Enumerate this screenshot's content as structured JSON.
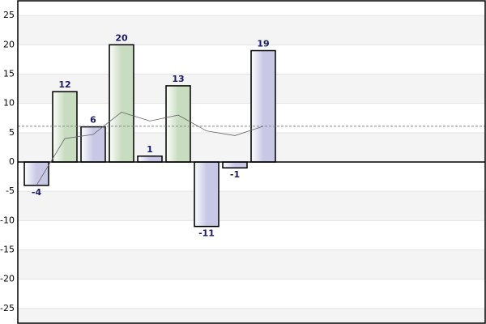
{
  "chart_data": {
    "type": "bar",
    "values": [
      -4,
      12,
      6,
      20,
      1,
      13,
      -11,
      -1,
      19
    ],
    "colors": [
      "#c8c8e6",
      "#c8dcc0",
      "#c8c8e6",
      "#c8dcc0",
      "#c8c8e6",
      "#c8dcc0",
      "#c8c8e6",
      "#c8c8e6",
      "#c8c8e6"
    ],
    "line": {
      "values": [
        -4,
        4,
        4.7,
        8.5,
        7,
        8,
        5.3,
        4.5,
        6.1
      ],
      "color": "#666666"
    },
    "average_line": 6.1,
    "ylim": [
      -27.5,
      27.5
    ],
    "yticks": [
      -25,
      -20,
      -15,
      -10,
      -5,
      0,
      5,
      10,
      15,
      20,
      25
    ],
    "grid": true
  }
}
